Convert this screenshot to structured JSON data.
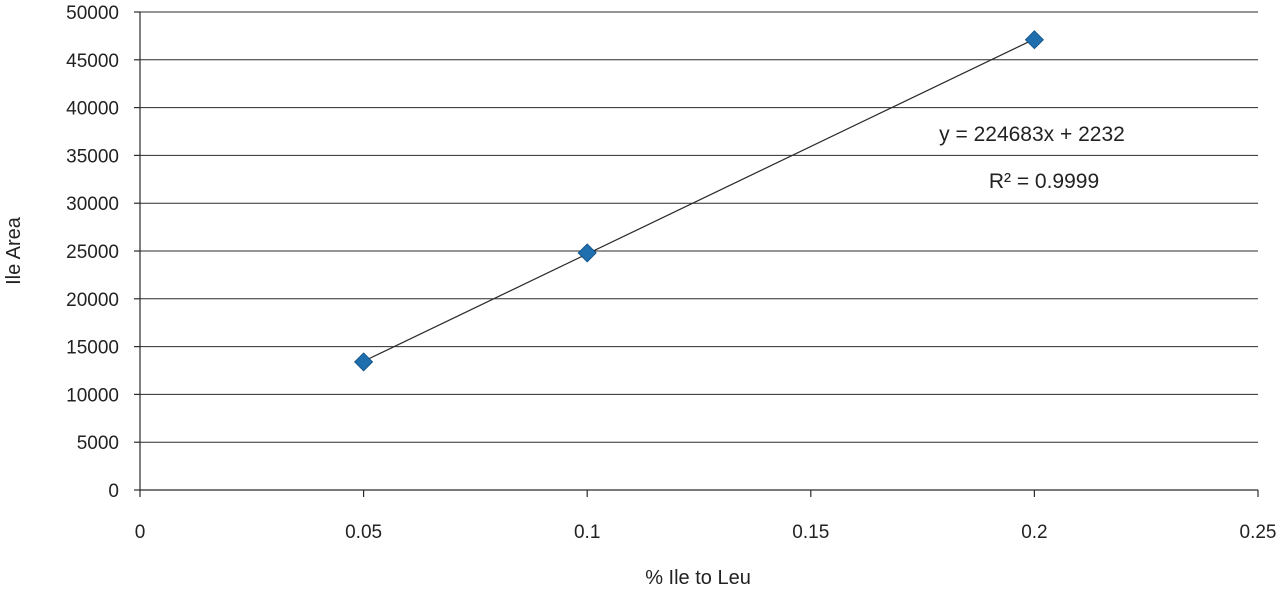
{
  "chart_data": {
    "type": "scatter",
    "xlabel": "% Ile to Leu",
    "ylabel": "Ile Area",
    "xlim": [
      0,
      0.25
    ],
    "ylim": [
      0,
      50000
    ],
    "x_ticks": [
      "0",
      "0.05",
      "0.1",
      "0.15",
      "0.2",
      "0.25"
    ],
    "y_ticks": [
      "0",
      "5000",
      "10000",
      "15000",
      "20000",
      "25000",
      "30000",
      "35000",
      "40000",
      "45000",
      "50000"
    ],
    "grid": "horizontal",
    "series": [
      {
        "x": [
          0.05,
          0.1,
          0.2
        ],
        "y": [
          13400,
          24800,
          47100
        ],
        "marker": "diamond",
        "color": "#1f6fae"
      }
    ],
    "trendline": {
      "type": "linear",
      "slope": 224683,
      "intercept": 2232,
      "x_range": [
        0.05,
        0.2
      ],
      "color": "#2b2b2b"
    },
    "annotations": {
      "equation": "y = 224683x + 2232",
      "r_squared": "R² = 0.9999"
    }
  }
}
